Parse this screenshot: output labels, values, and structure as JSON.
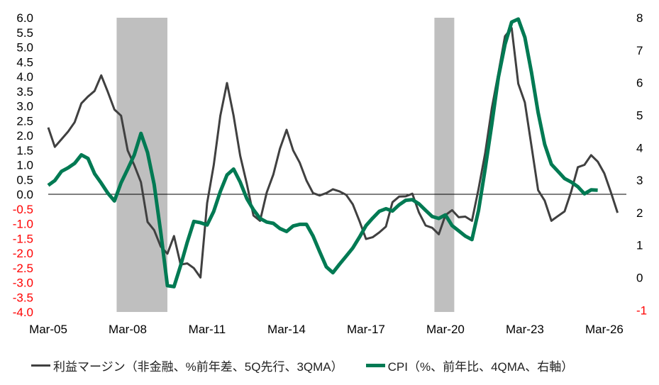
{
  "chart_data": {
    "type": "line",
    "x_ticks": [
      "Mar-05",
      "Mar-08",
      "Mar-11",
      "Mar-14",
      "Mar-17",
      "Mar-20",
      "Mar-23",
      "Mar-26"
    ],
    "left_axis": {
      "ylim": [
        -4.0,
        6.0
      ],
      "ticks": [
        "6.0",
        "5.5",
        "5.0",
        "4.5",
        "4.0",
        "3.5",
        "3.0",
        "2.5",
        "2.0",
        "1.5",
        "1.0",
        "0.5",
        "0.0",
        "-0.5",
        "-1.0",
        "-1.5",
        "-2.0",
        "-2.5",
        "-3.0",
        "-3.5",
        "-4.0"
      ]
    },
    "right_axis": {
      "ylim": [
        -1,
        8
      ],
      "ticks": [
        "8",
        "7",
        "6",
        "5",
        "4",
        "3",
        "2",
        "1",
        "0",
        "-1"
      ]
    },
    "negative_tick_color": "#ff0000",
    "shaded_periods": [
      [
        "2007-10",
        "2009-09"
      ],
      [
        "2019-10",
        "2020-07"
      ]
    ],
    "shade_color": "#bfbfbf",
    "zero_line": true,
    "grid": false,
    "legend_position": "bottom",
    "series": [
      {
        "name": "利益マージン（非金融、%前年差、5Q先行、3QMA）",
        "axis": "left",
        "color": "#404040",
        "start": "2005-03",
        "frequency": "quarterly",
        "values": [
          2.27,
          1.61,
          1.87,
          2.13,
          2.45,
          3.09,
          3.32,
          3.51,
          4.04,
          3.48,
          2.88,
          2.67,
          1.49,
          0.99,
          0.41,
          -0.94,
          -1.22,
          -1.78,
          -2.02,
          -1.42,
          -2.39,
          -2.35,
          -2.51,
          -2.83,
          -0.3,
          0.99,
          2.67,
          3.78,
          2.67,
          1.31,
          0.35,
          -0.72,
          -0.9,
          0.06,
          0.67,
          1.55,
          2.19,
          1.49,
          1.07,
          0.47,
          0.04,
          -0.04,
          0.04,
          0.17,
          0.1,
          -0.02,
          -0.34,
          -0.9,
          -1.52,
          -1.46,
          -1.3,
          -1.1,
          -0.27,
          -0.08,
          -0.07,
          0.02,
          -0.62,
          -1.06,
          -1.14,
          -1.36,
          -0.71,
          -0.54,
          -0.78,
          -0.76,
          -0.9,
          0.18,
          1.39,
          2.92,
          4.12,
          5.37,
          5.65,
          3.76,
          3.12,
          1.63,
          0.14,
          -0.22,
          -0.9,
          -0.74,
          -0.58,
          0.1,
          0.92,
          1.0,
          1.33,
          1.11,
          0.71,
          0.06,
          -0.63
        ]
      },
      {
        "name": "CPI（%、前年比、4QMA、右軸）",
        "axis": "right",
        "color": "#007a53",
        "start": "2005-03",
        "frequency": "quarterly",
        "values": [
          2.84,
          2.99,
          3.27,
          3.38,
          3.52,
          3.78,
          3.67,
          3.2,
          2.91,
          2.6,
          2.36,
          2.92,
          3.34,
          3.78,
          4.44,
          3.85,
          2.87,
          1.38,
          -0.25,
          -0.28,
          0.37,
          1.09,
          1.73,
          1.69,
          1.62,
          2.04,
          2.65,
          3.16,
          3.34,
          2.94,
          2.43,
          2.09,
          1.82,
          1.71,
          1.67,
          1.51,
          1.42,
          1.59,
          1.64,
          1.64,
          1.28,
          0.8,
          0.33,
          0.15,
          0.41,
          0.66,
          0.91,
          1.24,
          1.6,
          1.83,
          2.04,
          2.12,
          2.05,
          2.24,
          2.38,
          2.4,
          2.27,
          2.07,
          1.88,
          1.82,
          1.93,
          1.6,
          1.44,
          1.28,
          1.17,
          2.07,
          3.34,
          4.72,
          6.17,
          7.18,
          7.87,
          7.96,
          7.4,
          6.31,
          5.08,
          4.1,
          3.49,
          3.27,
          3.05,
          2.94,
          2.8,
          2.58,
          2.7,
          2.69
        ]
      }
    ]
  }
}
